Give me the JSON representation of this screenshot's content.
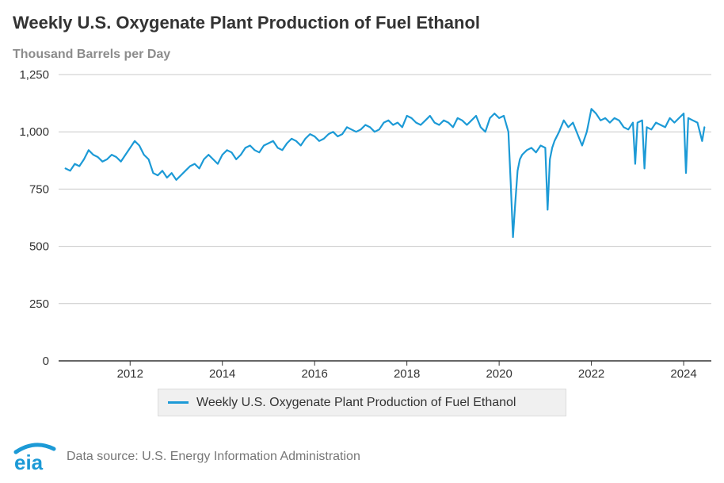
{
  "colors": {
    "series": "#1c9ad6",
    "grid": "#c8c8c8",
    "axis": "#333333",
    "logo": "#1c9ad6",
    "subtitle": "#8c8c8c"
  },
  "footer": {
    "logo_text": "eia",
    "source_text": "Data source: U.S. Energy Information Administration"
  },
  "chart_data": {
    "type": "line",
    "title": "Weekly U.S. Oxygenate Plant Production of Fuel Ethanol",
    "subtitle": "Thousand Barrels per Day",
    "xlabel": "",
    "ylabel": "",
    "xlim": [
      2010.45,
      2024.6
    ],
    "ylim": [
      0,
      1250
    ],
    "x_ticks": [
      2012,
      2014,
      2016,
      2018,
      2020,
      2022,
      2024
    ],
    "x_tick_labels": [
      "2012",
      "2014",
      "2016",
      "2018",
      "2020",
      "2022",
      "2024"
    ],
    "y_ticks": [
      0,
      250,
      500,
      750,
      1000,
      1250
    ],
    "y_tick_labels": [
      "0",
      "250",
      "500",
      "750",
      "1,000",
      "1,250"
    ],
    "grid": true,
    "legend_position": "bottom",
    "series": [
      {
        "name": "Weekly U.S. Oxygenate Plant Production of Fuel Ethanol",
        "color": "#1c9ad6",
        "x": [
          2010.6,
          2010.7,
          2010.8,
          2010.9,
          2011.0,
          2011.1,
          2011.2,
          2011.3,
          2011.4,
          2011.5,
          2011.6,
          2011.7,
          2011.8,
          2011.9,
          2012.0,
          2012.1,
          2012.2,
          2012.3,
          2012.4,
          2012.5,
          2012.6,
          2012.7,
          2012.8,
          2012.9,
          2013.0,
          2013.1,
          2013.2,
          2013.3,
          2013.4,
          2013.5,
          2013.6,
          2013.7,
          2013.8,
          2013.9,
          2014.0,
          2014.1,
          2014.2,
          2014.3,
          2014.4,
          2014.5,
          2014.6,
          2014.7,
          2014.8,
          2014.9,
          2015.0,
          2015.1,
          2015.2,
          2015.3,
          2015.4,
          2015.5,
          2015.6,
          2015.7,
          2015.8,
          2015.9,
          2016.0,
          2016.1,
          2016.2,
          2016.3,
          2016.4,
          2016.5,
          2016.6,
          2016.7,
          2016.8,
          2016.9,
          2017.0,
          2017.1,
          2017.2,
          2017.3,
          2017.4,
          2017.5,
          2017.6,
          2017.7,
          2017.8,
          2017.9,
          2018.0,
          2018.1,
          2018.2,
          2018.3,
          2018.4,
          2018.5,
          2018.6,
          2018.7,
          2018.8,
          2018.9,
          2019.0,
          2019.1,
          2019.2,
          2019.3,
          2019.4,
          2019.5,
          2019.6,
          2019.7,
          2019.8,
          2019.9,
          2020.0,
          2020.1,
          2020.2,
          2020.25,
          2020.3,
          2020.35,
          2020.4,
          2020.45,
          2020.5,
          2020.6,
          2020.7,
          2020.8,
          2020.9,
          2021.0,
          2021.05,
          2021.1,
          2021.15,
          2021.2,
          2021.3,
          2021.4,
          2021.5,
          2021.6,
          2021.7,
          2021.8,
          2021.9,
          2022.0,
          2022.1,
          2022.2,
          2022.3,
          2022.4,
          2022.5,
          2022.6,
          2022.7,
          2022.8,
          2022.9,
          2022.95,
          2023.0,
          2023.1,
          2023.15,
          2023.2,
          2023.3,
          2023.4,
          2023.5,
          2023.6,
          2023.7,
          2023.8,
          2023.9,
          2024.0,
          2024.05,
          2024.1,
          2024.2,
          2024.3,
          2024.4,
          2024.45
        ],
        "values": [
          840,
          830,
          860,
          850,
          880,
          920,
          900,
          890,
          870,
          880,
          900,
          890,
          870,
          900,
          930,
          960,
          940,
          900,
          880,
          820,
          810,
          830,
          800,
          820,
          790,
          810,
          830,
          850,
          860,
          840,
          880,
          900,
          880,
          860,
          900,
          920,
          910,
          880,
          900,
          930,
          940,
          920,
          910,
          940,
          950,
          960,
          930,
          920,
          950,
          970,
          960,
          940,
          970,
          990,
          980,
          960,
          970,
          990,
          1000,
          980,
          990,
          1020,
          1010,
          1000,
          1010,
          1030,
          1020,
          1000,
          1010,
          1040,
          1050,
          1030,
          1040,
          1020,
          1070,
          1060,
          1040,
          1030,
          1050,
          1070,
          1040,
          1030,
          1050,
          1040,
          1020,
          1060,
          1050,
          1030,
          1050,
          1070,
          1020,
          1000,
          1060,
          1080,
          1060,
          1070,
          1000,
          780,
          540,
          690,
          830,
          880,
          900,
          920,
          930,
          910,
          940,
          930,
          660,
          880,
          930,
          960,
          1000,
          1050,
          1020,
          1040,
          990,
          940,
          1000,
          1100,
          1080,
          1050,
          1060,
          1040,
          1060,
          1050,
          1020,
          1010,
          1040,
          860,
          1040,
          1050,
          840,
          1020,
          1010,
          1040,
          1030,
          1020,
          1060,
          1040,
          1060,
          1080,
          820,
          1060,
          1050,
          1040,
          960,
          1020
        ]
      }
    ]
  }
}
